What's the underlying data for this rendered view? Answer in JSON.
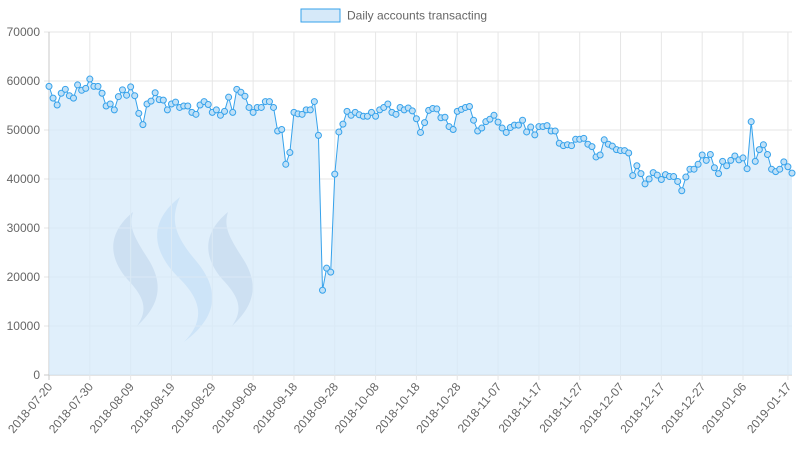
{
  "chart_data": {
    "type": "area",
    "legend": {
      "label": "Daily accounts transacting",
      "position": "top"
    },
    "colors": {
      "line": "#36a2eb",
      "fill": "#d6e9f9",
      "grid": "#e6e6e6",
      "logo_dark": "#9aaed0",
      "logo_light": "#9dc6f0"
    },
    "ylim": [
      0,
      70000
    ],
    "y_ticks": [
      "0",
      "10000",
      "20000",
      "30000",
      "40000",
      "50000",
      "60000",
      "70000"
    ],
    "x_start": "2018-07-20",
    "x_ticks": [
      "2018-07-20",
      "2018-07-30",
      "2018-08-09",
      "2018-08-19",
      "2018-08-29",
      "2018-09-08",
      "2018-09-18",
      "2018-09-28",
      "2018-10-08",
      "2018-10-18",
      "2018-10-28",
      "2018-11-07",
      "2018-11-17",
      "2018-11-27",
      "2018-12-07",
      "2018-12-17",
      "2018-12-27",
      "2019-01-06",
      "2019-01-17"
    ],
    "grid": true,
    "logo_icon": "steem-logo-icon",
    "values": [
      58900,
      56500,
      55100,
      57500,
      58300,
      57000,
      56500,
      59200,
      58100,
      58500,
      60400,
      58900,
      58900,
      57500,
      54900,
      55300,
      54100,
      56800,
      58200,
      57100,
      58800,
      57000,
      53400,
      51100,
      55300,
      55900,
      57600,
      56200,
      56100,
      54100,
      55300,
      55700,
      54600,
      54900,
      54900,
      53600,
      53200,
      55100,
      55800,
      55200,
      53600,
      54100,
      53000,
      53800,
      56700,
      53600,
      58300,
      57700,
      56900,
      54600,
      53600,
      54600,
      54600,
      55800,
      55800,
      54600,
      49800,
      50100,
      43000,
      45400,
      53600,
      53300,
      53200,
      54100,
      54100,
      55800,
      48900,
      17300,
      21800,
      21000,
      41000,
      49600,
      51200,
      53800,
      53000,
      53600,
      53100,
      52800,
      52800,
      53600,
      52800,
      54100,
      54600,
      55300,
      53600,
      53200,
      54600,
      54100,
      54500,
      53900,
      52300,
      49500,
      51500,
      54000,
      54400,
      54300,
      52500,
      52600,
      50700,
      50100,
      53800,
      54200,
      54600,
      54800,
      52000,
      49800,
      50400,
      51700,
      52200,
      53000,
      51600,
      50400,
      49500,
      50500,
      51000,
      51000,
      52000,
      49600,
      50600,
      49000,
      50700,
      50700,
      50900,
      49800,
      49800,
      47300,
      46800,
      47000,
      46800,
      48100,
      48100,
      48300,
      47100,
      46600,
      44500,
      44900,
      48000,
      47100,
      46700,
      46000,
      45800,
      45800,
      45300,
      40700,
      42700,
      41100,
      39000,
      40000,
      41300,
      40800,
      39900,
      40900,
      40500,
      40500,
      39500,
      37600,
      40400,
      42000,
      42000,
      43000,
      44900,
      43800,
      45000,
      42300,
      41100,
      43600,
      42700,
      43800,
      44700,
      43900,
      44300,
      42100,
      51700,
      43600,
      46000,
      47000,
      45000,
      42000,
      41500,
      42000,
      43500,
      42500,
      41200
    ]
  }
}
